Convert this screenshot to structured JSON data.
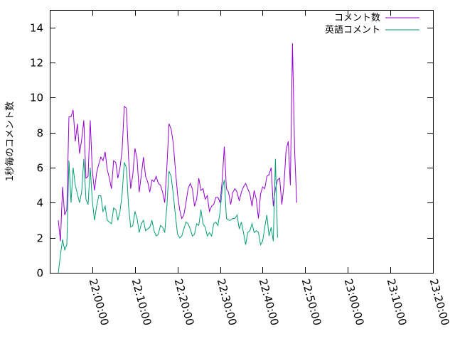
{
  "chart_data": {
    "type": "line",
    "ylabel": "1秒毎のコメント数",
    "ylim": [
      0,
      15
    ],
    "yticks": [
      0,
      2,
      4,
      6,
      8,
      10,
      12,
      14
    ],
    "xlim_minutes": [
      -10,
      80
    ],
    "xticks": [
      {
        "label": "22:00:00",
        "minutes": 0
      },
      {
        "label": "22:10:00",
        "minutes": 10
      },
      {
        "label": "22:20:00",
        "minutes": 20
      },
      {
        "label": "22:30:00",
        "minutes": 30
      },
      {
        "label": "22:40:00",
        "minutes": 40
      },
      {
        "label": "22:50:00",
        "minutes": 50
      },
      {
        "label": "23:00:00",
        "minutes": 60
      },
      {
        "label": "23:10:00",
        "minutes": 70
      },
      {
        "label": "23:20:00",
        "minutes": 80
      }
    ],
    "grid": false,
    "legend_position": "top-right",
    "series": [
      {
        "name": "コメント数",
        "color": "#9400d3",
        "points": [
          [
            -8.0,
            3.0
          ],
          [
            -7.5,
            1.8
          ],
          [
            -7.0,
            4.9
          ],
          [
            -6.5,
            3.3
          ],
          [
            -6.0,
            3.6
          ],
          [
            -5.5,
            8.9
          ],
          [
            -5.0,
            8.9
          ],
          [
            -4.5,
            9.3
          ],
          [
            -4.0,
            7.5
          ],
          [
            -3.5,
            8.5
          ],
          [
            -3.0,
            6.8
          ],
          [
            -2.5,
            7.6
          ],
          [
            -2.0,
            8.7
          ],
          [
            -1.5,
            5.4
          ],
          [
            -1.0,
            5.5
          ],
          [
            -0.5,
            8.7
          ],
          [
            0.0,
            5.8
          ],
          [
            0.5,
            4.7
          ],
          [
            1.0,
            5.7
          ],
          [
            1.5,
            6.2
          ],
          [
            2.0,
            6.6
          ],
          [
            2.5,
            6.4
          ],
          [
            3.0,
            6.9
          ],
          [
            3.5,
            5.9
          ],
          [
            4.0,
            5.4
          ],
          [
            4.5,
            4.8
          ],
          [
            5.0,
            6.4
          ],
          [
            5.5,
            6.3
          ],
          [
            6.0,
            5.4
          ],
          [
            6.5,
            6.0
          ],
          [
            7.0,
            7.0
          ],
          [
            7.5,
            9.5
          ],
          [
            8.0,
            9.4
          ],
          [
            8.5,
            6.6
          ],
          [
            9.0,
            4.8
          ],
          [
            9.5,
            5.6
          ],
          [
            10.0,
            7.1
          ],
          [
            10.5,
            6.5
          ],
          [
            11.0,
            4.6
          ],
          [
            11.5,
            5.6
          ],
          [
            12.0,
            6.6
          ],
          [
            12.5,
            5.5
          ],
          [
            13.0,
            5.2
          ],
          [
            13.5,
            4.6
          ],
          [
            14.0,
            5.3
          ],
          [
            14.5,
            5.2
          ],
          [
            15.0,
            5.5
          ],
          [
            15.5,
            5.1
          ],
          [
            16.0,
            5.0
          ],
          [
            16.5,
            4.6
          ],
          [
            17.0,
            4.0
          ],
          [
            17.5,
            6.0
          ],
          [
            18.0,
            8.5
          ],
          [
            18.5,
            8.2
          ],
          [
            19.0,
            7.4
          ],
          [
            19.5,
            5.9
          ],
          [
            20.0,
            4.5
          ],
          [
            20.5,
            3.6
          ],
          [
            21.0,
            3.1
          ],
          [
            21.5,
            3.3
          ],
          [
            22.0,
            4.0
          ],
          [
            22.5,
            4.8
          ],
          [
            23.0,
            5.1
          ],
          [
            23.5,
            4.8
          ],
          [
            24.0,
            3.8
          ],
          [
            24.5,
            4.2
          ],
          [
            25.0,
            5.4
          ],
          [
            25.5,
            4.7
          ],
          [
            26.0,
            4.8
          ],
          [
            26.5,
            4.2
          ],
          [
            27.0,
            4.4
          ],
          [
            27.5,
            3.5
          ],
          [
            28.0,
            3.8
          ],
          [
            28.5,
            3.9
          ],
          [
            29.0,
            4.3
          ],
          [
            29.5,
            4.3
          ],
          [
            30.0,
            4.0
          ],
          [
            30.5,
            5.3
          ],
          [
            31.0,
            7.2
          ],
          [
            31.5,
            4.8
          ],
          [
            32.0,
            4.6
          ],
          [
            32.5,
            3.9
          ],
          [
            33.0,
            4.6
          ],
          [
            33.5,
            4.8
          ],
          [
            34.0,
            4.6
          ],
          [
            34.5,
            4.1
          ],
          [
            35.0,
            4.6
          ],
          [
            35.5,
            4.9
          ],
          [
            36.0,
            5.1
          ],
          [
            36.5,
            4.8
          ],
          [
            37.0,
            4.5
          ],
          [
            37.5,
            3.8
          ],
          [
            38.0,
            4.7
          ],
          [
            38.5,
            4.2
          ],
          [
            39.0,
            3.1
          ],
          [
            39.5,
            4.5
          ],
          [
            40.0,
            4.9
          ],
          [
            40.5,
            4.8
          ],
          [
            41.0,
            5.5
          ],
          [
            41.5,
            5.6
          ],
          [
            42.0,
            6.0
          ],
          [
            42.5,
            3.8
          ],
          [
            43.0,
            4.8
          ],
          [
            43.5,
            5.3
          ],
          [
            44.0,
            5.4
          ],
          [
            44.5,
            3.9
          ],
          [
            45.0,
            5.0
          ],
          [
            45.5,
            7.0
          ],
          [
            46.0,
            7.5
          ],
          [
            46.5,
            5.0
          ],
          [
            47.0,
            13.1
          ],
          [
            47.5,
            7.0
          ],
          [
            48.0,
            4.0
          ]
        ]
      },
      {
        "name": "英語コメント",
        "color": "#009e73",
        "points": [
          [
            -8.0,
            0.0
          ],
          [
            -7.5,
            1.0
          ],
          [
            -7.0,
            1.9
          ],
          [
            -6.5,
            1.3
          ],
          [
            -6.0,
            1.6
          ],
          [
            -5.5,
            6.4
          ],
          [
            -5.0,
            4.0
          ],
          [
            -4.5,
            6.0
          ],
          [
            -4.0,
            5.0
          ],
          [
            -3.5,
            4.5
          ],
          [
            -3.0,
            4.0
          ],
          [
            -2.5,
            4.6
          ],
          [
            -2.0,
            6.5
          ],
          [
            -1.5,
            4.2
          ],
          [
            -1.0,
            3.9
          ],
          [
            -0.5,
            6.0
          ],
          [
            0.0,
            4.1
          ],
          [
            0.5,
            3.0
          ],
          [
            1.0,
            3.8
          ],
          [
            1.5,
            4.4
          ],
          [
            2.0,
            4.4
          ],
          [
            2.5,
            3.5
          ],
          [
            3.0,
            3.8
          ],
          [
            3.5,
            3.0
          ],
          [
            4.0,
            2.9
          ],
          [
            4.5,
            2.8
          ],
          [
            5.0,
            3.7
          ],
          [
            5.5,
            3.6
          ],
          [
            6.0,
            3.0
          ],
          [
            6.5,
            3.5
          ],
          [
            7.0,
            4.5
          ],
          [
            7.5,
            6.3
          ],
          [
            8.0,
            6.0
          ],
          [
            8.5,
            3.8
          ],
          [
            9.0,
            2.6
          ],
          [
            9.5,
            2.7
          ],
          [
            10.0,
            3.5
          ],
          [
            10.5,
            3.1
          ],
          [
            11.0,
            2.3
          ],
          [
            11.5,
            2.8
          ],
          [
            12.0,
            3.0
          ],
          [
            12.5,
            2.4
          ],
          [
            13.0,
            2.5
          ],
          [
            13.5,
            2.6
          ],
          [
            14.0,
            3.0
          ],
          [
            14.5,
            2.4
          ],
          [
            15.0,
            2.1
          ],
          [
            15.5,
            2.2
          ],
          [
            16.0,
            2.7
          ],
          [
            16.5,
            2.6
          ],
          [
            17.0,
            2.3
          ],
          [
            17.5,
            3.8
          ],
          [
            18.0,
            5.8
          ],
          [
            18.5,
            5.5
          ],
          [
            19.0,
            4.5
          ],
          [
            19.5,
            3.3
          ],
          [
            20.0,
            2.2
          ],
          [
            20.5,
            2.0
          ],
          [
            21.0,
            2.1
          ],
          [
            21.5,
            2.5
          ],
          [
            22.0,
            2.9
          ],
          [
            22.5,
            2.8
          ],
          [
            23.0,
            2.5
          ],
          [
            23.5,
            2.1
          ],
          [
            24.0,
            2.2
          ],
          [
            24.5,
            2.8
          ],
          [
            25.0,
            2.7
          ],
          [
            25.5,
            3.6
          ],
          [
            26.0,
            2.8
          ],
          [
            26.5,
            2.6
          ],
          [
            27.0,
            2.1
          ],
          [
            27.5,
            2.3
          ],
          [
            28.0,
            2.1
          ],
          [
            28.5,
            2.8
          ],
          [
            29.0,
            2.9
          ],
          [
            29.5,
            2.7
          ],
          [
            30.0,
            3.5
          ],
          [
            30.5,
            4.8
          ],
          [
            31.0,
            5.3
          ],
          [
            31.5,
            3.1
          ],
          [
            32.0,
            3.0
          ],
          [
            32.5,
            3.0
          ],
          [
            33.0,
            3.1
          ],
          [
            33.5,
            3.1
          ],
          [
            34.0,
            3.3
          ],
          [
            34.5,
            2.5
          ],
          [
            35.0,
            2.9
          ],
          [
            35.5,
            2.3
          ],
          [
            36.0,
            1.6
          ],
          [
            36.5,
            2.3
          ],
          [
            37.0,
            2.4
          ],
          [
            37.5,
            2.8
          ],
          [
            38.0,
            2.3
          ],
          [
            38.5,
            2.4
          ],
          [
            39.0,
            2.3
          ],
          [
            39.5,
            1.6
          ],
          [
            40.0,
            1.8
          ],
          [
            40.5,
            2.6
          ],
          [
            41.0,
            3.3
          ],
          [
            41.5,
            2.1
          ],
          [
            42.0,
            2.6
          ],
          [
            42.5,
            1.8
          ],
          [
            43.0,
            6.5
          ],
          [
            43.5,
            2.0
          ]
        ]
      }
    ]
  }
}
